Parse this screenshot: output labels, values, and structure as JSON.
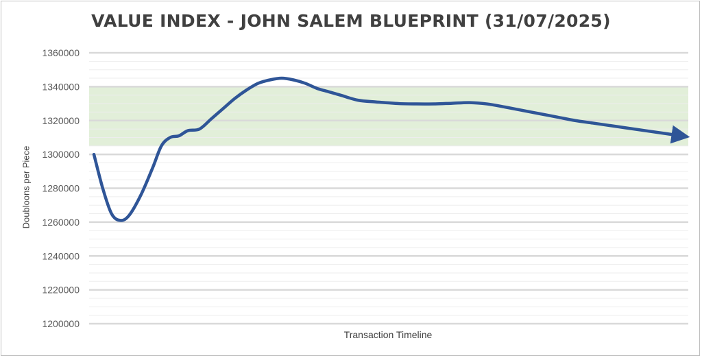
{
  "chart_data": {
    "type": "line",
    "title": "VALUE INDEX - JOHN SALEM BLUEPRINT (31/07/2025)",
    "xlabel": "Transaction Timeline",
    "ylabel": "Doubloons per Piece",
    "ylim": [
      1200000,
      1360000
    ],
    "yticks": [
      "1200000",
      "1220000",
      "1240000",
      "1260000",
      "1280000",
      "1300000",
      "1320000",
      "1340000",
      "1360000"
    ],
    "grid": true,
    "band": {
      "y0": 1305000,
      "y1": 1340000,
      "color": "#e2efd9"
    },
    "series": [
      {
        "color": "#2f5597",
        "x": [
          0,
          1.5,
          3,
          4.5,
          6,
          8,
          10,
          11.5,
          13,
          14.5,
          16,
          18,
          20,
          22,
          24,
          26,
          28,
          30,
          32,
          34,
          36,
          38,
          40,
          42,
          45,
          48,
          50,
          52,
          55,
          58,
          61,
          64,
          67,
          70,
          73,
          76,
          79,
          82,
          85,
          88,
          91,
          94,
          97,
          100
        ],
        "values": [
          1300000,
          1280000,
          1265000,
          1261000,
          1264000,
          1276000,
          1292000,
          1305000,
          1310000,
          1311000,
          1314000,
          1315000,
          1321000,
          1327000,
          1333000,
          1338000,
          1342000,
          1344000,
          1345000,
          1344000,
          1342000,
          1339000,
          1337000,
          1335000,
          1332000,
          1331000,
          1330500,
          1330000,
          1329800,
          1329800,
          1330200,
          1330600,
          1329800,
          1328000,
          1326000,
          1324000,
          1322000,
          1320000,
          1318500,
          1317000,
          1315500,
          1314000,
          1312500,
          1311000
        ]
      }
    ]
  }
}
